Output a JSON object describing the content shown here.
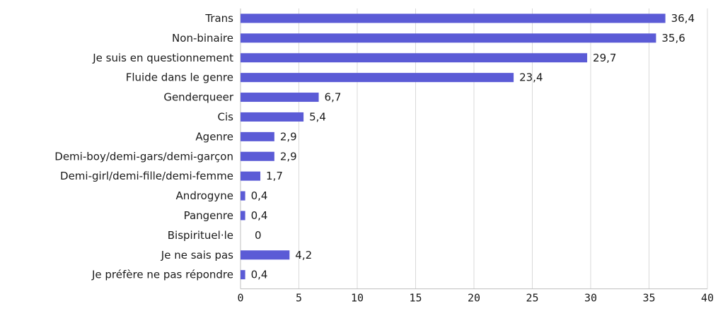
{
  "chart_data": {
    "type": "bar",
    "orientation": "horizontal",
    "categories": [
      "Trans",
      "Non-binaire",
      "Je suis en questionnement",
      "Fluide dans le genre",
      "Genderqueer",
      "Cis",
      "Agenre",
      "Demi-boy/demi-gars/demi-garçon",
      "Demi-girl/demi-fille/demi-femme",
      "Androgyne",
      "Pangenre",
      "Bispirituel·le",
      "Je ne sais pas",
      "Je préfère ne pas répondre"
    ],
    "values": [
      36.4,
      35.6,
      29.7,
      23.4,
      6.7,
      5.4,
      2.9,
      2.9,
      1.7,
      0.4,
      0.4,
      0,
      4.2,
      0.4
    ],
    "value_labels": [
      "36,4",
      "35,6",
      "29,7",
      "23,4",
      "6,7",
      "5,4",
      "2,9",
      "2,9",
      "1,7",
      "0,4",
      "0,4",
      "0",
      "4,2",
      "0,4"
    ],
    "xlim": [
      0,
      40
    ],
    "x_ticks": [
      0,
      5,
      10,
      15,
      20,
      25,
      30,
      35,
      40
    ],
    "x_tick_labels": [
      "0",
      "5",
      "10",
      "15",
      "20",
      "25",
      "30",
      "35",
      "40"
    ],
    "grid": "vertical",
    "legend": "none",
    "title": "",
    "xlabel": "",
    "ylabel": "",
    "colors": {
      "bar": "#5b5bd6",
      "grid": "#d9d9d9",
      "axis": "#bfbfbf",
      "text": "#1a1a1a"
    }
  }
}
